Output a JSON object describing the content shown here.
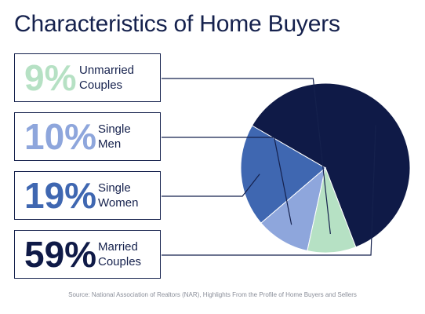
{
  "title": "Characteristics of Home Buyers",
  "source": "Source: National Association of Realtors (NAR), Highlights From the Profile of Home Buyers and Sellers",
  "chart_data": {
    "type": "pie",
    "title": "Characteristics of Home Buyers",
    "slices": [
      {
        "category": "Married Couples",
        "value": 59,
        "label_pct": "59%",
        "label_line1": "Married",
        "label_line2": "Couples",
        "color": "#0f1a47"
      },
      {
        "category": "Single Women",
        "value": 19,
        "label_pct": "19%",
        "label_line1": "Single",
        "label_line2": "Women",
        "color": "#3f67b1"
      },
      {
        "category": "Single Men",
        "value": 10,
        "label_pct": "10%",
        "label_line1": "Single",
        "label_line2": "Men",
        "color": "#8ea6dc"
      },
      {
        "category": "Unmarried Couples",
        "value": 9,
        "label_pct": "9%",
        "label_line1": "Unmarried",
        "label_line2": "Couples",
        "color": "#b6e1c4"
      }
    ],
    "legend": "left"
  }
}
